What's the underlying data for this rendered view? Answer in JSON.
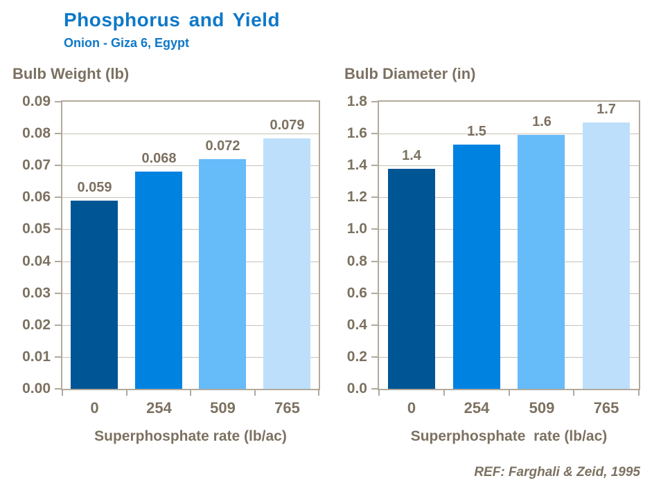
{
  "header": {
    "title": "Phosphorus and Yield",
    "subtitle": "Onion - Giza 6, Egypt"
  },
  "footer": {
    "reference": "REF: Farghali & Zeid, 1995"
  },
  "colors": {
    "title_blue": "#0E78C8",
    "label_brown": "#7C7161",
    "gridline": "#C8C1B5",
    "axis_border": "#B1A99C",
    "background": "#FFFFFF",
    "bars": [
      "#005595",
      "#0082E1",
      "#66BBF9",
      "#BDDFFB"
    ]
  },
  "chart_data": [
    {
      "type": "bar",
      "title": "Bulb Weight (lb)",
      "categories": [
        "0",
        "254",
        "509",
        "765"
      ],
      "values": [
        0.059,
        0.068,
        0.072,
        0.079
      ],
      "bar_labels": [
        "0.059",
        "0.068",
        "0.072",
        "0.079"
      ],
      "bar_heights": [
        0.059,
        0.068,
        0.072,
        0.0785
      ],
      "xlabel": "Superphosphate rate (lb/ac)",
      "ylabel": "",
      "ylim": [
        0,
        0.09
      ],
      "ytick_step": 0.01,
      "yticks_top_to_bottom": [
        "0.09",
        "0.08",
        "0.07",
        "0.06",
        "0.05",
        "0.04",
        "0.03",
        "0.02",
        "0.01",
        "0.00"
      ],
      "grid": true,
      "legend": "none"
    },
    {
      "type": "bar",
      "title": "Bulb Diameter (in)",
      "categories": [
        "0",
        "254",
        "509",
        "765"
      ],
      "values": [
        1.4,
        1.5,
        1.6,
        1.7
      ],
      "bar_labels": [
        "1.4",
        "1.5",
        "1.6",
        "1.7"
      ],
      "bar_heights": [
        1.38,
        1.53,
        1.59,
        1.67
      ],
      "xlabel": "Superphosphate  rate (lb/ac)",
      "ylabel": "",
      "ylim": [
        0,
        1.8
      ],
      "ytick_step": 0.2,
      "yticks_top_to_bottom": [
        "1.8",
        "1.6",
        "1.4",
        "1.2",
        "1.0",
        "0.8",
        "0.6",
        "0.4",
        "0.2",
        "0.0"
      ],
      "grid": true,
      "legend": "none"
    }
  ]
}
